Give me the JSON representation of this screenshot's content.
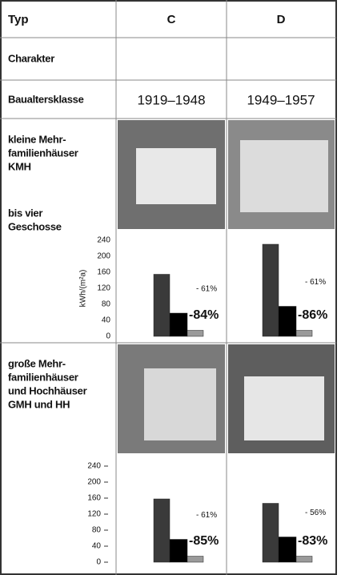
{
  "table": {
    "header": [
      "Typ",
      "C",
      "D"
    ],
    "rows": [
      [
        "Charakter"
      ],
      [
        "Baualtersklasse",
        "1919–1948",
        "1949–1957"
      ]
    ],
    "groups": [
      {
        "label_lines": [
          "kleine Mehr-",
          "familienhäuser",
          "KMH"
        ],
        "sublabel_lines": [
          "bis vier",
          "Geschosse"
        ]
      },
      {
        "label_lines": [
          "große Mehr-",
          "familienhäuser",
          "und Hochhäuser",
          "GMH und HH"
        ]
      }
    ]
  },
  "chart_data": [
    {
      "type": "bar",
      "y_label": "kWh/(m²a)",
      "ylim": [
        0,
        240
      ],
      "yticks": [
        0,
        40,
        80,
        120,
        160,
        200,
        240
      ],
      "colors": [
        "#3a3a3a",
        "#000000",
        "#9a9a9a"
      ],
      "columns": [
        {
          "values": [
            155,
            58,
            15
          ],
          "annotations": [
            "- 61%",
            "-84%"
          ]
        },
        {
          "values": [
            230,
            75,
            15
          ],
          "annotations": [
            "- 61%",
            "-86%"
          ]
        }
      ]
    },
    {
      "type": "bar",
      "ylim": [
        0,
        240
      ],
      "yticks": [
        0,
        40,
        80,
        120,
        160,
        200,
        240
      ],
      "colors": [
        "#3a3a3a",
        "#000000",
        "#9a9a9a"
      ],
      "columns": [
        {
          "values": [
            158,
            57,
            15
          ],
          "annotations": [
            "- 61%",
            "-85%"
          ]
        },
        {
          "values": [
            147,
            63,
            15
          ],
          "annotations": [
            "- 56%",
            "-83%"
          ]
        }
      ]
    }
  ]
}
